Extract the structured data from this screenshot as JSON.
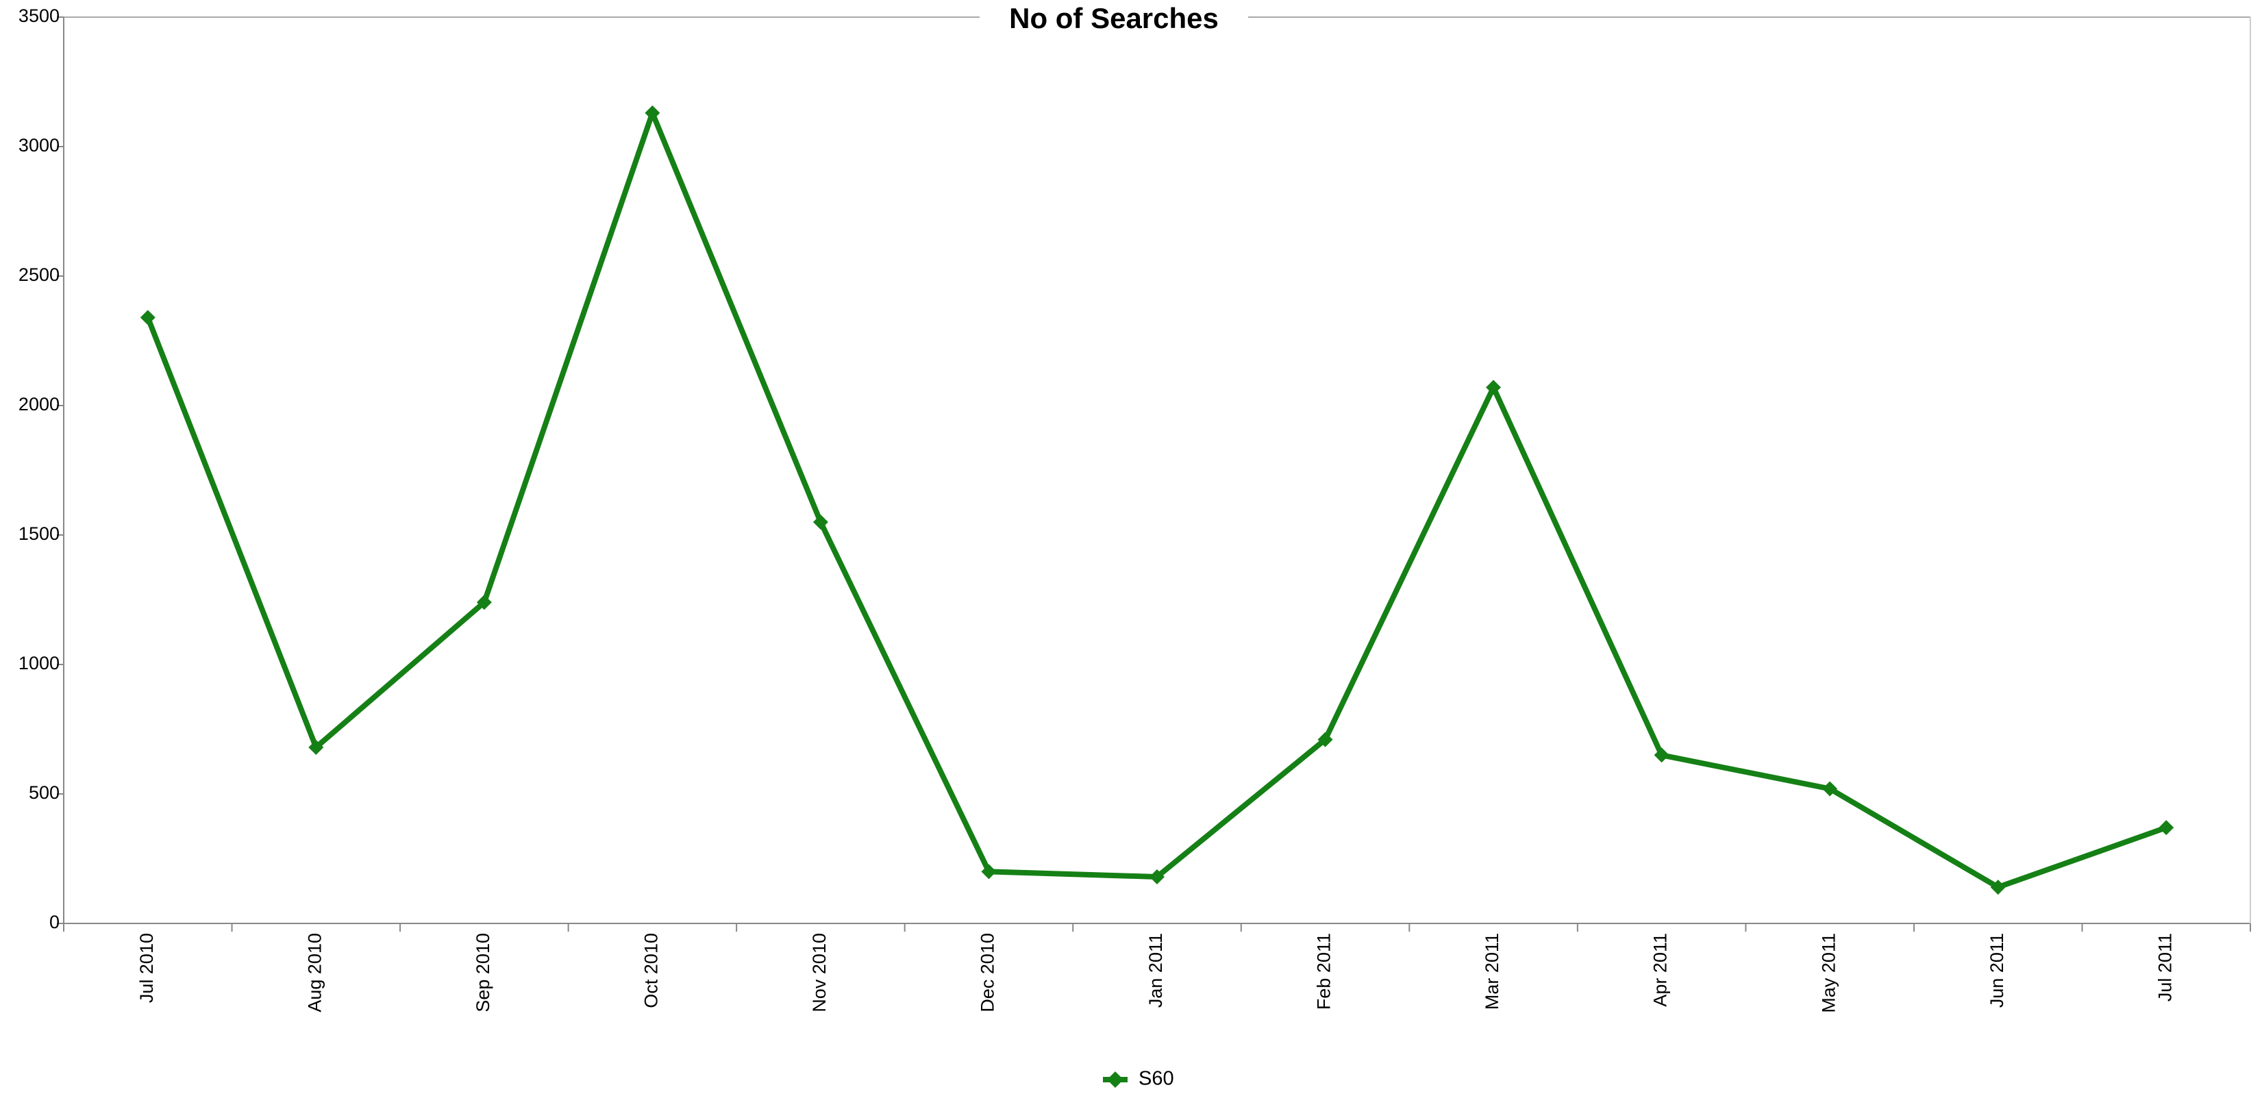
{
  "chart_data": {
    "type": "line",
    "title": "No of Searches",
    "categories": [
      "Jul 2010",
      "Aug 2010",
      "Sep 2010",
      "Oct 2010",
      "Nov 2010",
      "Dec 2010",
      "Jan 2011",
      "Feb 2011",
      "Mar 2011",
      "Apr 2011",
      "May 2011",
      "Jun 2011",
      "Jul 2011"
    ],
    "series": [
      {
        "name": "S60",
        "color": "#158015",
        "values": [
          2340,
          680,
          1240,
          3130,
          1550,
          200,
          180,
          710,
          2070,
          650,
          520,
          140,
          370
        ]
      }
    ],
    "ylim": [
      0,
      3500
    ],
    "yticks": [
      0,
      500,
      1000,
      1500,
      2000,
      2500,
      3000,
      3500
    ],
    "grid": false,
    "legend": "bottom"
  }
}
